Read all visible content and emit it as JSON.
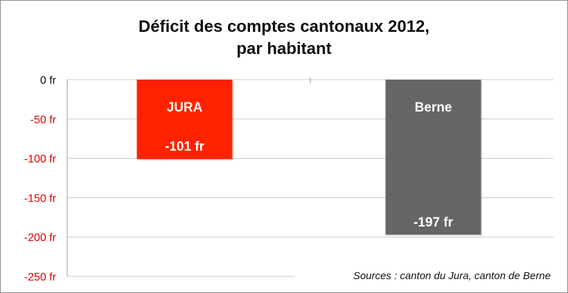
{
  "chart_data": {
    "type": "bar",
    "title_lines": [
      "Déficit des comptes cantonaux 2012,",
      "par habitant"
    ],
    "categories": [
      "JURA",
      "Berne"
    ],
    "values": [
      -101,
      -197
    ],
    "value_labels": [
      "-101 fr",
      "-197 fr"
    ],
    "bar_colors": [
      "#ff2200",
      "#666666"
    ],
    "bar_label_color": "#ffffff",
    "ylim": [
      -250,
      0
    ],
    "yticks": [
      0,
      -50,
      -100,
      -150,
      -200,
      -250
    ],
    "ytick_labels": [
      "0 fr",
      "-50 fr",
      "-100 fr",
      "-150 fr",
      "-200 fr",
      "-250 fr"
    ],
    "ytick_colors": [
      "#111111",
      "#dd0000",
      "#dd0000",
      "#dd0000",
      "#dd0000",
      "#dd0000"
    ],
    "grid": true,
    "grid_color": "#c8c8c8",
    "xlabel": "",
    "ylabel": "",
    "source": "Sources : canton du Jura, canton de Berne"
  }
}
